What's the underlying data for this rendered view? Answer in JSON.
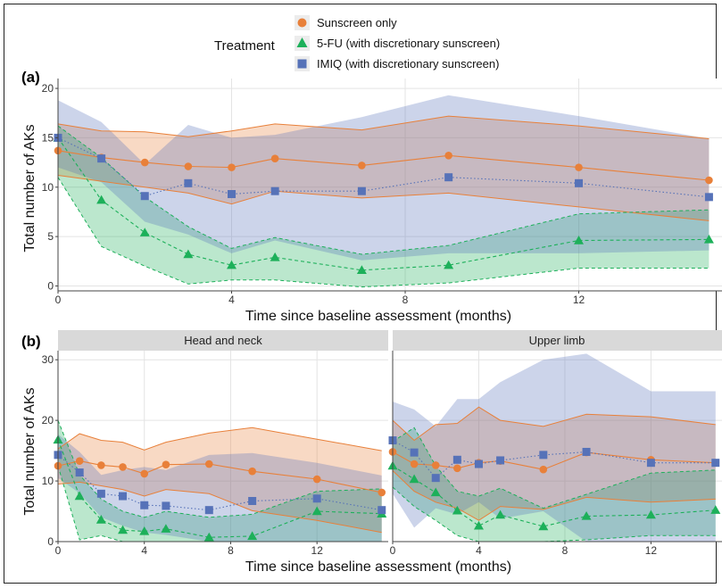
{
  "legend": {
    "title": "Treatment",
    "items": [
      {
        "label": "Sunscreen only",
        "color": "#E8803A",
        "shape": "circle"
      },
      {
        "label": "5-FU (with discretionary sunscreen)",
        "color": "#1DB05A",
        "shape": "triangle"
      },
      {
        "label": "IMIQ (with discretionary sunscreen)",
        "color": "#5672B8",
        "shape": "square"
      }
    ]
  },
  "chart_data": [
    {
      "panel": "(a)",
      "type": "line",
      "xlabel": "Time since baseline assessment (months)",
      "ylabel": "Total number of AKs",
      "xlim": [
        0,
        15.3
      ],
      "ylim": [
        -0.5,
        21
      ],
      "xticks": [
        0,
        4,
        8,
        12
      ],
      "yticks": [
        0,
        5,
        10,
        15,
        20
      ],
      "facets": [
        {
          "strip": "",
          "series": [
            {
              "name": "Sunscreen only",
              "x": [
                0,
                1,
                2,
                3,
                4,
                5,
                7,
                9,
                12,
                15
              ],
              "values": [
                13.7,
                13.0,
                12.5,
                12.1,
                12.0,
                12.9,
                12.2,
                13.2,
                12.0,
                10.7
              ],
              "lower": [
                11.2,
                10.6,
                10.0,
                9.4,
                8.3,
                9.6,
                8.9,
                9.4,
                8.0,
                6.6
              ],
              "upper": [
                16.4,
                15.7,
                15.6,
                15.1,
                15.7,
                16.4,
                15.8,
                17.2,
                16.2,
                14.9
              ]
            },
            {
              "name": "5-FU (with discretionary sunscreen)",
              "x": [
                0,
                1,
                2,
                3,
                4,
                5,
                7,
                9,
                12,
                15
              ],
              "values": [
                15.0,
                8.7,
                5.4,
                3.2,
                2.1,
                2.9,
                1.6,
                2.1,
                4.6,
                4.7
              ],
              "lower": [
                11.0,
                4.0,
                2.0,
                0.2,
                0.6,
                0.6,
                -0.1,
                0.3,
                1.8,
                1.8
              ],
              "upper": [
                16.2,
                13.0,
                9.0,
                6.0,
                3.8,
                4.9,
                3.2,
                4.1,
                7.3,
                7.7
              ]
            },
            {
              "name": "IMIQ (with discretionary sunscreen)",
              "x": [
                0,
                1,
                2,
                3,
                4,
                5,
                7,
                9,
                12,
                15
              ],
              "values": [
                15.0,
                12.9,
                9.1,
                10.4,
                9.3,
                9.6,
                9.6,
                11.0,
                10.4,
                9.0
              ],
              "lower": [
                12.0,
                10.5,
                6.5,
                5.2,
                3.3,
                4.6,
                2.6,
                3.3,
                3.3,
                3.6
              ],
              "upper": [
                18.8,
                16.6,
                12.3,
                16.3,
                15.0,
                15.3,
                17.1,
                19.3,
                17.2,
                14.9
              ]
            }
          ]
        }
      ]
    },
    {
      "panel": "(b)",
      "type": "line",
      "xlabel": "Time since baseline assessment (months)",
      "ylabel": "Total number of AKs",
      "xlim": [
        0,
        15.3
      ],
      "ylim": [
        0,
        31.5
      ],
      "xticks": [
        0,
        4,
        8,
        12
      ],
      "yticks": [
        0,
        10,
        20,
        30
      ],
      "facets": [
        {
          "strip": "Head and neck",
          "series": [
            {
              "name": "Sunscreen only",
              "x": [
                0,
                1,
                2,
                3,
                4,
                5,
                7,
                9,
                12,
                15
              ],
              "values": [
                12.5,
                13.3,
                12.6,
                12.3,
                11.2,
                12.7,
                12.8,
                11.6,
                10.3,
                8.1
              ],
              "lower": [
                9.5,
                9.8,
                9.2,
                8.6,
                7.5,
                8.6,
                7.9,
                5.1,
                3.5,
                1.5
              ],
              "upper": [
                15.3,
                17.8,
                16.7,
                16.4,
                15.1,
                16.4,
                17.9,
                18.8,
                16.9,
                15.0
              ]
            },
            {
              "name": "5-FU (with discretionary sunscreen)",
              "x": [
                0,
                1,
                2,
                3,
                4,
                5,
                7,
                9,
                12,
                15
              ],
              "values": [
                16.8,
                7.5,
                3.6,
                1.9,
                1.7,
                2.1,
                0.7,
                0.9,
                5.0,
                4.6
              ],
              "lower": [
                12.5,
                0.3,
                1.0,
                0.0,
                0.0,
                0.0,
                0.0,
                0.0,
                0.0,
                0.0
              ],
              "upper": [
                20.0,
                11.0,
                7.0,
                5.0,
                4.0,
                5.0,
                4.0,
                4.5,
                8.3,
                8.7
              ]
            },
            {
              "name": "IMIQ (with discretionary sunscreen)",
              "x": [
                0,
                1,
                2,
                3,
                4,
                5,
                7,
                9,
                12,
                15
              ],
              "values": [
                14.3,
                11.4,
                7.9,
                7.5,
                6.0,
                5.9,
                5.2,
                6.7,
                7.1,
                5.2
              ],
              "lower": [
                10.5,
                8.0,
                4.0,
                2.6,
                1.5,
                1.1,
                0.0,
                0.0,
                0.0,
                0.0
              ],
              "upper": [
                17.7,
                14.8,
                11.0,
                11.8,
                12.3,
                11.8,
                14.3,
                14.6,
                13.0,
                10.9
              ]
            }
          ]
        },
        {
          "strip": "Upper limb",
          "series": [
            {
              "name": "Sunscreen only",
              "x": [
                0,
                1,
                2,
                3,
                4,
                5,
                7,
                9,
                12,
                15
              ],
              "values": [
                14.8,
                12.8,
                12.6,
                12.1,
                13.0,
                13.3,
                11.9,
                14.7,
                13.5,
                13.0
              ],
              "lower": [
                11.7,
                8.3,
                6.5,
                5.5,
                3.5,
                5.8,
                5.3,
                7.3,
                6.5,
                7.0
              ],
              "upper": [
                20.0,
                16.7,
                19.3,
                19.5,
                22.2,
                20.0,
                19.0,
                21.0,
                20.6,
                19.3
              ]
            },
            {
              "name": "5-FU (with discretionary sunscreen)",
              "x": [
                0,
                1,
                2,
                3,
                4,
                5,
                7,
                9,
                12,
                15
              ],
              "values": [
                12.5,
                10.3,
                8.1,
                5.1,
                2.6,
                4.4,
                2.5,
                4.2,
                4.4,
                5.2
              ],
              "lower": [
                9.0,
                5.8,
                3.5,
                1.0,
                0.0,
                0.0,
                0.0,
                0.3,
                1.0,
                1.0
              ],
              "upper": [
                16.5,
                18.8,
                12.5,
                8.3,
                7.5,
                8.8,
                5.5,
                7.8,
                11.3,
                11.8
              ]
            },
            {
              "name": "IMIQ (with discretionary sunscreen)",
              "x": [
                0,
                1,
                2,
                3,
                4,
                5,
                7,
                9,
                12,
                15
              ],
              "values": [
                16.7,
                14.7,
                10.5,
                13.5,
                12.8,
                13.4,
                14.3,
                14.8,
                13.0,
                13.0
              ],
              "lower": [
                7.9,
                2.3,
                5.5,
                4.5,
                6.5,
                3.8,
                5.0,
                0.0,
                0.0,
                0.0
              ],
              "upper": [
                23.1,
                21.8,
                19.0,
                23.5,
                23.5,
                26.3,
                30.0,
                31.0,
                24.8,
                24.8
              ]
            }
          ]
        }
      ]
    }
  ]
}
